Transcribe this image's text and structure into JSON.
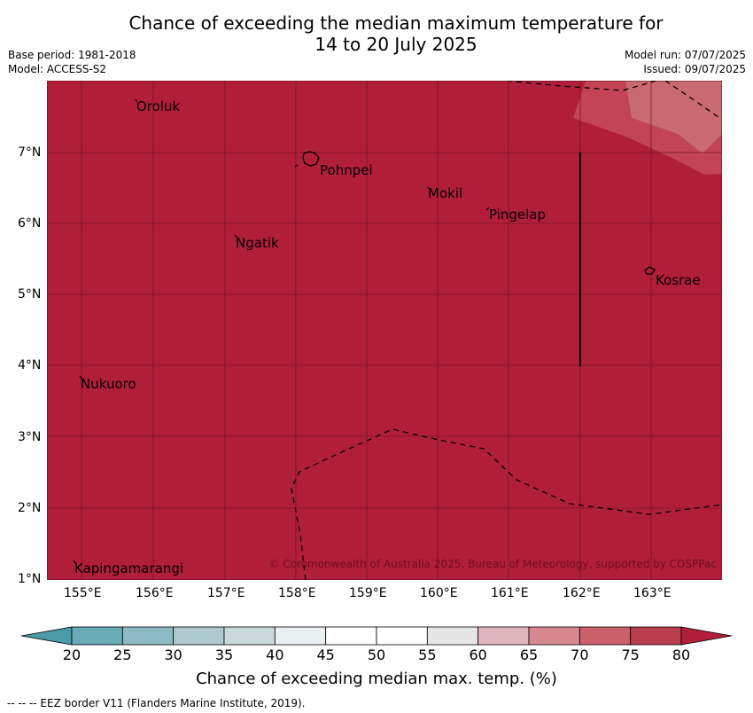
{
  "header": {
    "title_line1": "Chance of exceeding the median maximum temperature for",
    "title_line2": "14 to 20 July 2025",
    "base_period": "Base period: 1981-2018",
    "model": "Model: ACCESS-S2",
    "model_run": "Model run: 07/07/2025",
    "issued": "Issued: 09/07/2025"
  },
  "map": {
    "background_color": "#b11e3a",
    "lon_ticks": [
      "155°E",
      "156°E",
      "157°E",
      "158°E",
      "159°E",
      "160°E",
      "161°E",
      "162°E",
      "163°E"
    ],
    "lat_ticks": [
      "7°N",
      "6°N",
      "5°N",
      "4°N",
      "3°N",
      "2°N",
      "1°N"
    ],
    "places": [
      {
        "name": "Oroluk",
        "id": "oroluk"
      },
      {
        "name": "Pohnpei",
        "id": "pohnpei"
      },
      {
        "name": "Mokil",
        "id": "mokil"
      },
      {
        "name": "Pingelap",
        "id": "pingelap"
      },
      {
        "name": "Ngatik",
        "id": "ngatik"
      },
      {
        "name": "Kosrae",
        "id": "kosrae"
      },
      {
        "name": "Nukuoro",
        "id": "nukuoro"
      },
      {
        "name": "Kapingamarangi",
        "id": "kapingamarangi"
      }
    ],
    "copyright": "© Commonwealth of Australia 2025, Bureau of Meteorology, supported by COSPPac"
  },
  "colorbar": {
    "labels": [
      "20",
      "25",
      "30",
      "35",
      "40",
      "45",
      "50",
      "55",
      "60",
      "65",
      "70",
      "75",
      "80"
    ],
    "colors": [
      "#6aabb8",
      "#8dbac4",
      "#adc9cc",
      "#cbd8dc",
      "#ebf0f2",
      "#ffffff",
      "#ffffff",
      "#e6e6e6",
      "#e0b6bd",
      "#d6878f",
      "#c9606a",
      "#b93d4d"
    ],
    "low_extend_color": "#4a9aaa",
    "high_extend_color": "#b11e3a",
    "title": "Chance of exceeding median max. temp. (%)"
  },
  "footer": {
    "eez_note": "--  --  -- EEZ border V11 (Flanders Marine Institute, 2019)."
  }
}
